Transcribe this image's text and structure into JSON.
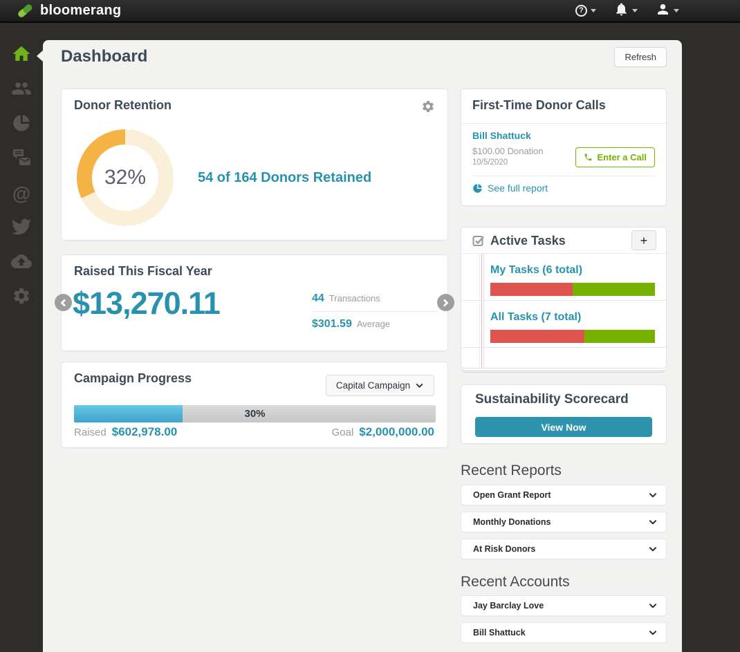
{
  "colors": {
    "accent_teal": "#2792ae",
    "brand_green": "#72b117",
    "button_green": "#76b100",
    "task_red": "#df534f",
    "task_green": "#76b100",
    "donut_fill": "#f5b345",
    "donut_track": "#faf0da",
    "progress_blue": "#4fb8dc"
  },
  "topbar": {
    "brand": "bloomerang",
    "menus": [
      {
        "name": "help",
        "icon": "question-circle-icon"
      },
      {
        "name": "notifications",
        "icon": "bell-icon"
      },
      {
        "name": "account",
        "icon": "user-icon"
      }
    ]
  },
  "sidebar": {
    "items": [
      {
        "icon": "home-icon",
        "active": true
      },
      {
        "icon": "contacts-icon",
        "active": false
      },
      {
        "icon": "reports-icon",
        "active": false
      },
      {
        "icon": "communications-icon",
        "active": false
      },
      {
        "icon": "email-icon",
        "active": false
      },
      {
        "icon": "twitter-icon",
        "active": false
      },
      {
        "icon": "cloud-upload-icon",
        "active": false
      },
      {
        "icon": "settings-icon",
        "active": false
      }
    ]
  },
  "header": {
    "title": "Dashboard",
    "refresh_button": "Refresh"
  },
  "donor_retention": {
    "title": "Donor Retention",
    "percent": 32,
    "percent_label": "32%",
    "summary": "54 of 164 Donors Retained"
  },
  "raised": {
    "title": "Raised This Fiscal Year",
    "amount": "$13,270.11",
    "transactions": {
      "value": "44",
      "label": "Transactions"
    },
    "average": {
      "value": "$301.59",
      "label": "Average"
    }
  },
  "campaign": {
    "title": "Campaign Progress",
    "selected_campaign": "Capital Campaign",
    "percent": 30,
    "percent_label": "30%",
    "raised_label": "Raised",
    "raised_value": "$602,978.00",
    "goal_label": "Goal",
    "goal_value": "$2,000,000.00"
  },
  "donor_calls": {
    "title": "First-Time Donor Calls",
    "entry": {
      "name": "Bill Shattuck",
      "detail": "$100.00 Donation",
      "date": "10/5/2020",
      "call_button": "Enter a Call"
    },
    "report_link": "See full report"
  },
  "active_tasks": {
    "title": "Active Tasks",
    "add_button": "+",
    "rows": [
      {
        "label": "My Tasks (6 total)",
        "total": 6,
        "red_pct": 50,
        "green_pct": 50
      },
      {
        "label": "All Tasks (7 total)",
        "total": 7,
        "red_pct": 57,
        "green_pct": 43
      }
    ]
  },
  "scorecard": {
    "title": "Sustainability Scorecard",
    "view_button": "View Now"
  },
  "recent_reports": {
    "heading": "Recent Reports",
    "items": [
      "Open Grant Report",
      "Monthly Donations",
      "At Risk Donors"
    ]
  },
  "recent_accounts": {
    "heading": "Recent Accounts",
    "items": [
      "Jay Barclay Love",
      "Bill Shattuck"
    ]
  }
}
